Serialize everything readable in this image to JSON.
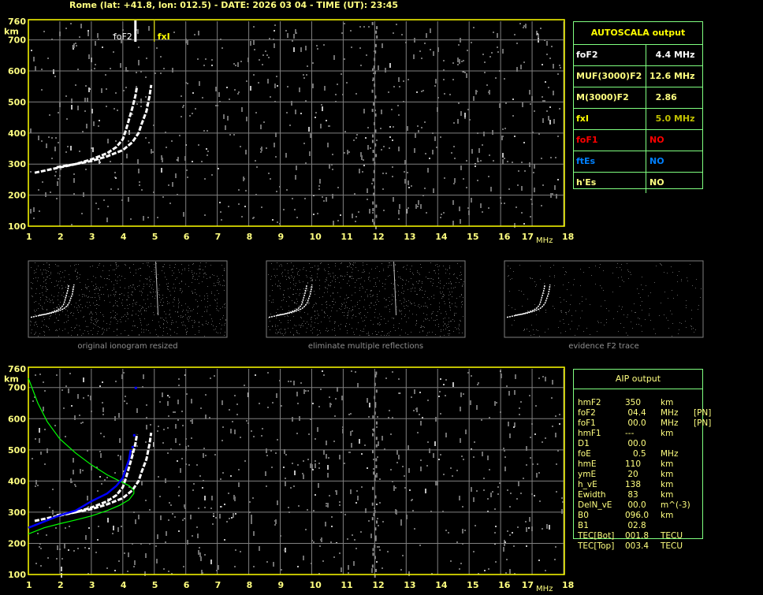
{
  "header": {
    "title": "Rome (lat: +41.8, lon: 012.5) - DATE: 2026 03 04 - TIME (UT): 23:45"
  },
  "colors": {
    "axis": "#ffff00",
    "grid": "#808080",
    "trace": "#ffffff",
    "profile": "#00ff00",
    "aip_trace": "#0000ff",
    "table_border": "#80ff80"
  },
  "chart_data": [
    {
      "type": "scatter",
      "name_shown": "",
      "xlabel": "MHz",
      "ylabel": "km",
      "xlim": [
        1,
        18
      ],
      "ylim": [
        100,
        760
      ],
      "x_ticks": [
        "1",
        "2",
        "3",
        "4",
        "5",
        "6",
        "7",
        "8",
        "9",
        "10",
        "11",
        "12",
        "13",
        "14",
        "15",
        "16",
        "17",
        "18"
      ],
      "y_ticks": [
        "100",
        "200",
        "300",
        "400",
        "500",
        "600",
        "700",
        "760"
      ],
      "markers": [
        {
          "label": "foF2",
          "freq": 4.4
        },
        {
          "label": "fxI",
          "freq": 5.0
        }
      ],
      "o_trace": [
        [
          1.2,
          272
        ],
        [
          1.8,
          285
        ],
        [
          2.5,
          300
        ],
        [
          3.0,
          315
        ],
        [
          3.5,
          335
        ],
        [
          3.8,
          355
        ],
        [
          4.0,
          380
        ],
        [
          4.1,
          410
        ],
        [
          4.2,
          445
        ],
        [
          4.3,
          480
        ],
        [
          4.4,
          520
        ],
        [
          4.45,
          550
        ]
      ],
      "x_trace": [
        [
          1.9,
          290
        ],
        [
          2.5,
          300
        ],
        [
          3.0,
          310
        ],
        [
          3.5,
          325
        ],
        [
          4.0,
          345
        ],
        [
          4.3,
          370
        ],
        [
          4.5,
          400
        ],
        [
          4.6,
          430
        ],
        [
          4.75,
          470
        ],
        [
          4.85,
          520
        ],
        [
          4.9,
          555
        ]
      ],
      "grid": true
    },
    {
      "type": "line",
      "xlabel": "MHz",
      "ylabel": "km",
      "xlim": [
        1,
        18
      ],
      "ylim": [
        100,
        760
      ],
      "x_ticks": [
        "1",
        "2",
        "3",
        "4",
        "5",
        "6",
        "7",
        "8",
        "9",
        "10",
        "11",
        "12",
        "13",
        "14",
        "15",
        "16",
        "17",
        "18"
      ],
      "y_ticks": [
        "100",
        "200",
        "300",
        "400",
        "500",
        "600",
        "700",
        "760"
      ],
      "profile": [
        [
          1.0,
          230
        ],
        [
          1.5,
          250
        ],
        [
          2.0,
          263
        ],
        [
          2.5,
          275
        ],
        [
          3.0,
          288
        ],
        [
          3.5,
          305
        ],
        [
          3.9,
          322
        ],
        [
          4.2,
          340
        ],
        [
          4.35,
          360
        ],
        [
          4.35,
          370
        ],
        [
          4.2,
          385
        ],
        [
          3.9,
          400
        ],
        [
          3.5,
          420
        ],
        [
          3.0,
          452
        ],
        [
          2.5,
          490
        ],
        [
          2.0,
          535
        ],
        [
          1.6,
          590
        ],
        [
          1.3,
          650
        ],
        [
          1.0,
          730
        ]
      ],
      "aip_trace": [
        [
          1.0,
          250
        ],
        [
          1.5,
          270
        ],
        [
          2.0,
          290
        ],
        [
          2.5,
          305
        ],
        [
          3.0,
          335
        ],
        [
          3.5,
          360
        ],
        [
          3.8,
          385
        ],
        [
          4.0,
          410
        ],
        [
          4.1,
          440
        ],
        [
          4.2,
          470
        ],
        [
          4.25,
          500
        ]
      ],
      "aip_points": [
        [
          4.4,
          700
        ],
        [
          4.35,
          548
        ],
        [
          4.3,
          510
        ]
      ],
      "grid": true
    }
  ],
  "thumbnails": [
    {
      "caption": "original ionogram resized"
    },
    {
      "caption": "eliminate multiple reflections"
    },
    {
      "caption": "evidence F2 trace"
    }
  ],
  "autoscala": {
    "title": "AUTOSCALA output",
    "rows": [
      {
        "key": "foF2",
        "value": "  4.4 MHz",
        "kcolor": "#ffffff",
        "vcolor": "#ffffff"
      },
      {
        "key": "MUF(3000)F2",
        "value": "12.6 MHz",
        "kcolor": "#ffff80",
        "vcolor": "#ffff80"
      },
      {
        "key": "M(3000)F2",
        "value": "  2.86",
        "kcolor": "#ffff80",
        "vcolor": "#ffff80"
      },
      {
        "key": "fxI",
        "value": "  5.0 MHz",
        "kcolor": "#ffff00",
        "vcolor": "#c0c000"
      },
      {
        "key": "foF1",
        "value": "NO",
        "kcolor": "#ff0000",
        "vcolor": "#ff0000"
      },
      {
        "key": "ftEs",
        "value": "NO",
        "kcolor": "#0080ff",
        "vcolor": "#0080ff"
      },
      {
        "key": "h'Es",
        "value": "NO",
        "kcolor": "#ffff80",
        "vcolor": "#ffff80"
      }
    ]
  },
  "aip": {
    "title": "AIP output",
    "rows": [
      [
        "hmF2",
        "350",
        "km",
        ""
      ],
      [
        "foF2",
        " 04.4",
        "MHz",
        "[PN]"
      ],
      [
        "foF1",
        " 00.0",
        "MHz",
        "[PN]"
      ],
      [
        "hmF1",
        "---",
        "km",
        ""
      ],
      [
        "D1",
        " 00.0",
        "",
        ""
      ],
      [
        "foE",
        "   0.5",
        "MHz",
        ""
      ],
      [
        "hmE",
        "110",
        "km",
        ""
      ],
      [
        "ymE",
        " 20",
        "km",
        ""
      ],
      [
        "h_vE",
        "138",
        "km",
        ""
      ],
      [
        "Ewidth",
        " 83",
        "km",
        ""
      ],
      [
        "DelN_vE",
        " 00.0",
        "m^(-3)",
        ""
      ],
      [
        "B0",
        "096.0",
        "km",
        ""
      ],
      [
        "B1",
        " 02.8",
        "",
        ""
      ],
      [
        "TEC[Bot]",
        "001.8",
        "TECU",
        ""
      ],
      [
        "TEC[Top]",
        "003.4",
        "TECU",
        ""
      ]
    ]
  }
}
